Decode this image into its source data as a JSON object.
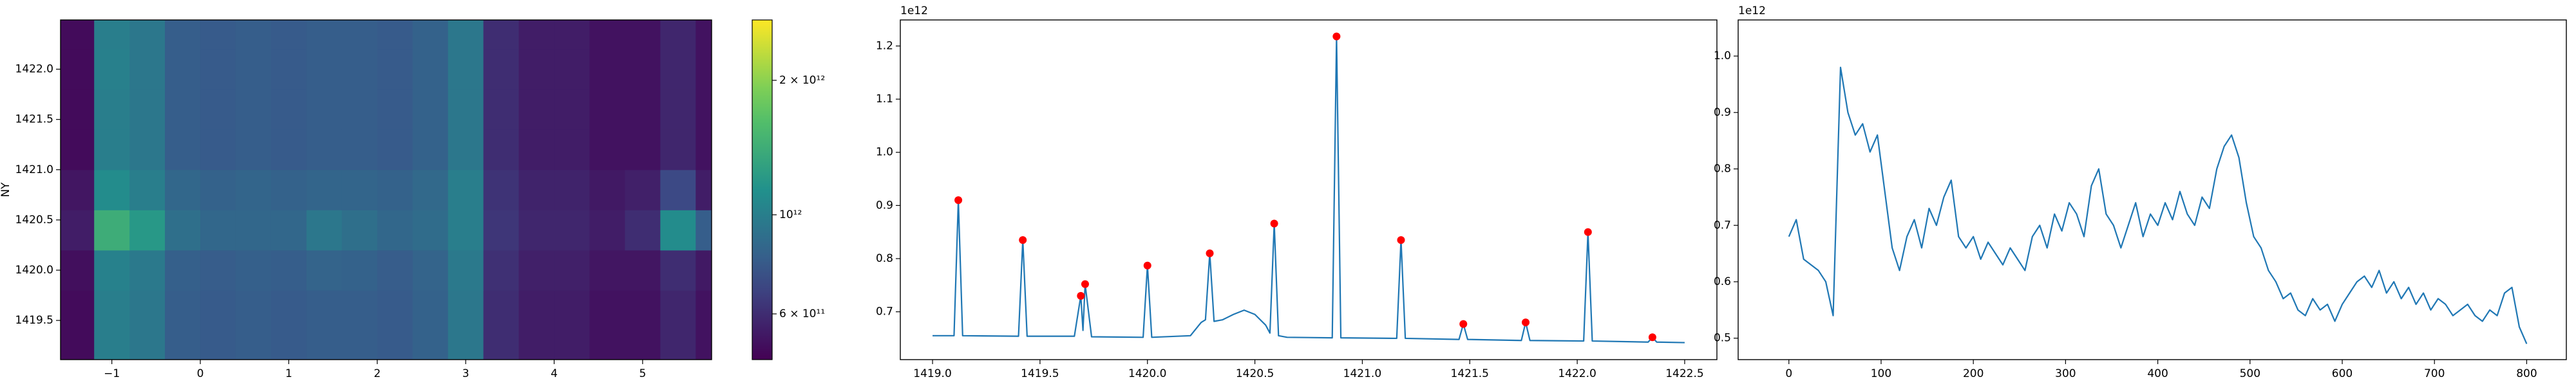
{
  "chart_data": [
    {
      "type": "heatmap",
      "ylabel": "NY",
      "colormap": "viridis",
      "x": [
        -1.4,
        -1.0,
        -0.6,
        -0.2,
        0.2,
        0.6,
        1.0,
        1.4,
        1.8,
        2.2,
        2.6,
        3.0,
        3.4,
        3.8,
        4.2,
        4.6,
        5.0,
        5.4,
        5.8
      ],
      "y": [
        1419.2,
        1419.6,
        1420.0,
        1420.4,
        1420.8,
        1421.2,
        1421.6,
        1422.0,
        1422.4
      ],
      "values": [
        [
          500000000000.0,
          1000000000000.0,
          950000000000.0,
          800000000000.0,
          780000000000.0,
          800000000000.0,
          780000000000.0,
          800000000000.0,
          800000000000.0,
          780000000000.0,
          820000000000.0,
          950000000000.0,
          600000000000.0,
          550000000000.0,
          550000000000.0,
          520000000000.0,
          520000000000.0,
          580000000000.0,
          520000000000.0
        ],
        [
          500000000000.0,
          1000000000000.0,
          950000000000.0,
          800000000000.0,
          780000000000.0,
          800000000000.0,
          780000000000.0,
          800000000000.0,
          800000000000.0,
          780000000000.0,
          820000000000.0,
          950000000000.0,
          600000000000.0,
          550000000000.0,
          550000000000.0,
          520000000000.0,
          520000000000.0,
          580000000000.0,
          520000000000.0
        ],
        [
          510000000000.0,
          1020000000000.0,
          960000000000.0,
          810000000000.0,
          790000000000.0,
          810000000000.0,
          800000000000.0,
          830000000000.0,
          820000000000.0,
          790000000000.0,
          830000000000.0,
          960000000000.0,
          610000000000.0,
          560000000000.0,
          560000000000.0,
          530000000000.0,
          530000000000.0,
          600000000000.0,
          540000000000.0
        ],
        [
          550000000000.0,
          1400000000000.0,
          1200000000000.0,
          900000000000.0,
          850000000000.0,
          850000000000.0,
          850000000000.0,
          950000000000.0,
          900000000000.0,
          850000000000.0,
          880000000000.0,
          1000000000000.0,
          630000000000.0,
          580000000000.0,
          580000000000.0,
          550000000000.0,
          600000000000.0,
          1100000000000.0,
          800000000000.0
        ],
        [
          530000000000.0,
          1100000000000.0,
          1000000000000.0,
          850000000000.0,
          820000000000.0,
          840000000000.0,
          820000000000.0,
          840000000000.0,
          840000000000.0,
          820000000000.0,
          860000000000.0,
          1000000000000.0,
          620000000000.0,
          570000000000.0,
          570000000000.0,
          540000000000.0,
          560000000000.0,
          700000000000.0,
          550000000000.0
        ],
        [
          500000000000.0,
          1000000000000.0,
          950000000000.0,
          800000000000.0,
          780000000000.0,
          800000000000.0,
          780000000000.0,
          800000000000.0,
          800000000000.0,
          780000000000.0,
          820000000000.0,
          950000000000.0,
          600000000000.0,
          550000000000.0,
          550000000000.0,
          520000000000.0,
          520000000000.0,
          580000000000.0,
          520000000000.0
        ],
        [
          500000000000.0,
          1000000000000.0,
          950000000000.0,
          800000000000.0,
          780000000000.0,
          800000000000.0,
          780000000000.0,
          800000000000.0,
          800000000000.0,
          780000000000.0,
          820000000000.0,
          950000000000.0,
          600000000000.0,
          550000000000.0,
          550000000000.0,
          520000000000.0,
          520000000000.0,
          580000000000.0,
          520000000000.0
        ],
        [
          500000000000.0,
          1010000000000.0,
          950000000000.0,
          800000000000.0,
          780000000000.0,
          800000000000.0,
          780000000000.0,
          800000000000.0,
          800000000000.0,
          780000000000.0,
          820000000000.0,
          950000000000.0,
          600000000000.0,
          550000000000.0,
          550000000000.0,
          520000000000.0,
          520000000000.0,
          580000000000.0,
          520000000000.0
        ],
        [
          500000000000.0,
          1000000000000.0,
          950000000000.0,
          800000000000.0,
          780000000000.0,
          800000000000.0,
          780000000000.0,
          800000000000.0,
          800000000000.0,
          780000000000.0,
          820000000000.0,
          950000000000.0,
          600000000000.0,
          550000000000.0,
          550000000000.0,
          520000000000.0,
          520000000000.0,
          580000000000.0,
          520000000000.0
        ]
      ],
      "xlim": [
        -1.58,
        5.78
      ],
      "ylim": [
        1419.11,
        1422.49
      ],
      "xticks": [
        {
          "value": -1,
          "label": "−1"
        },
        0,
        1,
        2,
        3,
        4,
        5
      ],
      "yticks": [
        1419.5,
        {
          "value": 1420,
          "label": "1420.0"
        },
        1420.5,
        {
          "value": 1421,
          "label": "1421.0"
        },
        1421.5,
        {
          "value": 1422,
          "label": "1422.0"
        }
      ],
      "colorbar": {
        "scale": "log",
        "lim": [
          474000000000.0,
          2730000000000.0
        ],
        "ticks": [
          {
            "value": 2000000000000.0,
            "label": "2 × 10¹²"
          },
          {
            "value": 1000000000000.0,
            "label": "10¹²"
          },
          {
            "value": 600000000000.0,
            "label": "6 × 10¹¹"
          }
        ]
      }
    },
    {
      "type": "line",
      "offset_label": "1e12",
      "series": [
        {
          "style": "line",
          "color": "#1f77b4",
          "x": [
            1419.0,
            1419.1,
            1419.12,
            1419.14,
            1419.4,
            1419.42,
            1419.44,
            1419.66,
            1419.69,
            1419.7,
            1419.71,
            1419.74,
            1419.98,
            1420.0,
            1420.02,
            1420.2,
            1420.25,
            1420.27,
            1420.29,
            1420.31,
            1420.35,
            1420.4,
            1420.45,
            1420.5,
            1420.55,
            1420.57,
            1420.59,
            1420.61,
            1420.65,
            1420.86,
            1420.88,
            1420.9,
            1421.16,
            1421.18,
            1421.2,
            1421.45,
            1421.47,
            1421.49,
            1421.74,
            1421.76,
            1421.78,
            1422.03,
            1422.05,
            1422.07,
            1422.33,
            1422.35,
            1422.37,
            1422.5
          ],
          "values": [
            0.655,
            0.655,
            0.91,
            0.655,
            0.654,
            0.835,
            0.654,
            0.654,
            0.73,
            0.665,
            0.752,
            0.653,
            0.652,
            0.787,
            0.652,
            0.655,
            0.68,
            0.685,
            0.81,
            0.682,
            0.685,
            0.695,
            0.703,
            0.695,
            0.675,
            0.66,
            0.866,
            0.655,
            0.652,
            0.651,
            1.218,
            0.651,
            0.65,
            0.835,
            0.65,
            0.648,
            0.677,
            0.648,
            0.646,
            0.68,
            0.646,
            0.645,
            0.85,
            0.645,
            0.643,
            0.652,
            0.643,
            0.642
          ]
        },
        {
          "style": "marker",
          "color": "#ff0000",
          "x": [
            1419.12,
            1419.42,
            1419.69,
            1419.71,
            1420.0,
            1420.29,
            1420.59,
            1420.88,
            1421.18,
            1421.47,
            1421.76,
            1422.05,
            1422.35
          ],
          "values": [
            0.91,
            0.835,
            0.73,
            0.752,
            0.787,
            0.81,
            0.866,
            1.218,
            0.835,
            0.677,
            0.68,
            0.85,
            0.652
          ]
        }
      ],
      "xlim": [
        1418.85,
        1422.65
      ],
      "ylim": [
        0.61,
        1.249
      ],
      "xticks": [
        {
          "value": 1419,
          "label": "1419.0"
        },
        1419.5,
        {
          "value": 1420,
          "label": "1420.0"
        },
        1420.5,
        {
          "value": 1421,
          "label": "1421.0"
        },
        1421.5,
        {
          "value": 1422,
          "label": "1422.0"
        },
        1422.5
      ],
      "yticks": [
        0.7,
        0.8,
        0.9,
        {
          "value": 1,
          "label": "1.0"
        },
        1.1,
        1.2
      ]
    },
    {
      "type": "line",
      "offset_label": "1e12",
      "series": [
        {
          "style": "line",
          "color": "#1f77b4",
          "x": [
            0,
            8,
            16,
            24,
            32,
            40,
            48,
            56,
            64,
            72,
            80,
            88,
            96,
            104,
            112,
            120,
            128,
            136,
            144,
            152,
            160,
            168,
            176,
            184,
            192,
            200,
            208,
            216,
            224,
            232,
            240,
            248,
            256,
            264,
            272,
            280,
            288,
            296,
            304,
            312,
            320,
            328,
            336,
            344,
            352,
            360,
            368,
            376,
            384,
            392,
            400,
            408,
            416,
            424,
            432,
            440,
            448,
            456,
            464,
            472,
            480,
            488,
            496,
            504,
            512,
            520,
            528,
            536,
            544,
            552,
            560,
            568,
            576,
            584,
            592,
            600,
            608,
            616,
            624,
            632,
            640,
            648,
            656,
            664,
            672,
            680,
            688,
            696,
            704,
            712,
            720,
            728,
            736,
            744,
            752,
            760,
            768,
            776,
            784,
            792,
            800
          ],
          "values": [
            0.68,
            0.71,
            0.64,
            0.63,
            0.62,
            0.6,
            0.54,
            0.98,
            0.9,
            0.86,
            0.88,
            0.83,
            0.86,
            0.76,
            0.66,
            0.62,
            0.68,
            0.71,
            0.66,
            0.73,
            0.7,
            0.75,
            0.78,
            0.68,
            0.66,
            0.68,
            0.64,
            0.67,
            0.65,
            0.63,
            0.66,
            0.64,
            0.62,
            0.68,
            0.7,
            0.66,
            0.72,
            0.69,
            0.74,
            0.72,
            0.68,
            0.77,
            0.8,
            0.72,
            0.7,
            0.66,
            0.7,
            0.74,
            0.68,
            0.72,
            0.7,
            0.74,
            0.71,
            0.76,
            0.72,
            0.7,
            0.75,
            0.73,
            0.8,
            0.84,
            0.86,
            0.82,
            0.74,
            0.68,
            0.66,
            0.62,
            0.6,
            0.57,
            0.58,
            0.55,
            0.54,
            0.57,
            0.55,
            0.56,
            0.53,
            0.56,
            0.58,
            0.6,
            0.61,
            0.59,
            0.62,
            0.58,
            0.6,
            0.57,
            0.59,
            0.56,
            0.58,
            0.55,
            0.57,
            0.56,
            0.54,
            0.55,
            0.56,
            0.54,
            0.53,
            0.55,
            0.54,
            0.58,
            0.59,
            0.52,
            0.49
          ]
        }
      ],
      "xlim": [
        -55,
        843
      ],
      "ylim": [
        0.462,
        1.064
      ],
      "xticks": [
        0,
        100,
        200,
        300,
        400,
        500,
        600,
        700,
        800
      ],
      "yticks": [
        0.5,
        0.6,
        0.7,
        0.8,
        0.9,
        {
          "value": 1,
          "label": "1.0"
        }
      ]
    }
  ]
}
